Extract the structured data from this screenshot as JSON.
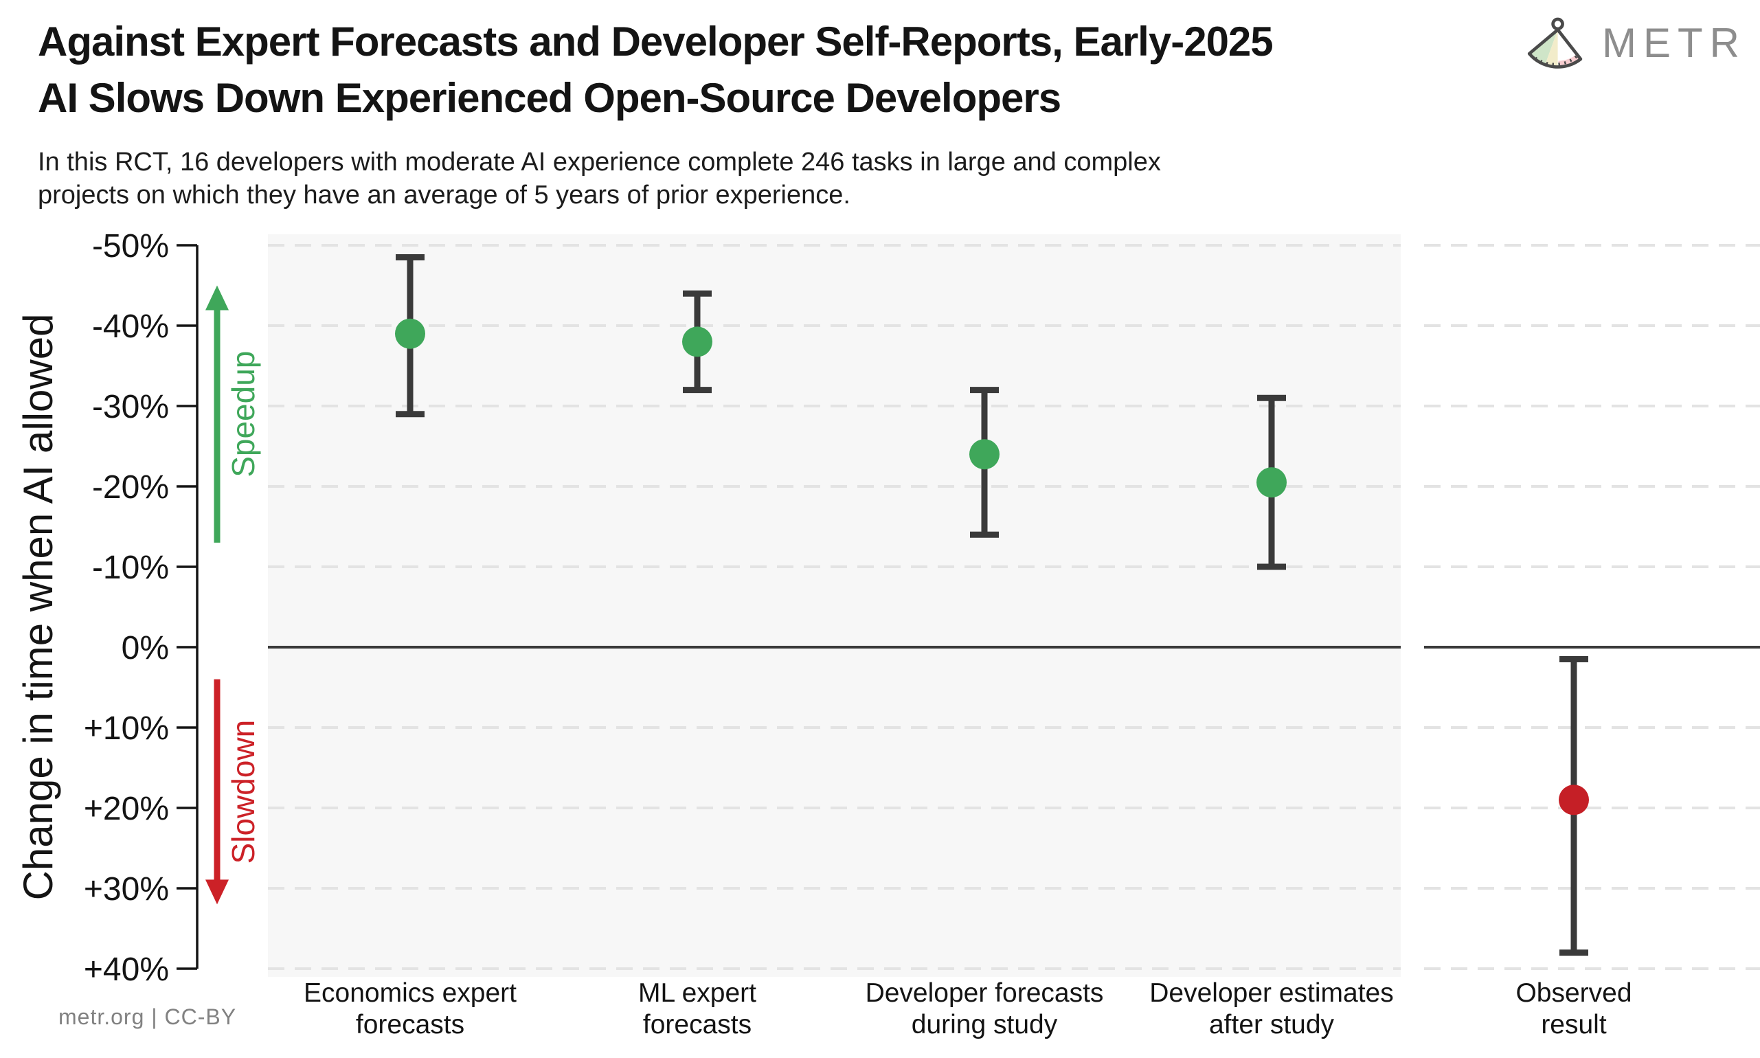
{
  "header": {
    "logo_text": "METR"
  },
  "footer": {
    "credit": "metr.org | CC-BY"
  },
  "chart_data": {
    "type": "scatter",
    "title": "Against Expert Forecasts and Developer Self-Reports, Early-2025 AI Slows Down Experienced Open-Source Developers",
    "title_lines": [
      "Against Expert Forecasts and Developer Self-Reports, Early-2025",
      "AI Slows Down Experienced Open-Source Developers"
    ],
    "subtitle_lines": [
      "In this RCT, 16 developers with moderate AI experience complete 246 tasks in large and complex",
      "projects on which they have an average of 5 years of prior experience."
    ],
    "ylabel": "Change in time when AI allowed",
    "ylim": [
      -50,
      40
    ],
    "yticks": [
      -50,
      -40,
      -30,
      -20,
      -10,
      0,
      10,
      20,
      30,
      40
    ],
    "ytick_labels": [
      "-50%",
      "-40%",
      "-30%",
      "-20%",
      "-10%",
      "0%",
      "+10%",
      "+20%",
      "+30%",
      "+40%"
    ],
    "grid": "dashed-horizontal",
    "zero_line": 0,
    "direction_annotations": [
      {
        "label": "Speedup",
        "direction": "up",
        "color": "#3fa75a",
        "value_range": [
          -45,
          -13
        ]
      },
      {
        "label": "Slowdown",
        "direction": "down",
        "color": "#cc2127",
        "value_range": [
          4,
          32
        ]
      }
    ],
    "series": [
      {
        "category": "Economics expert forecasts",
        "label_lines": [
          "Economics expert",
          "forecasts"
        ],
        "value": -39,
        "ci_low": -48.5,
        "ci_high": -29,
        "color": "#3fa75a",
        "panel": "main"
      },
      {
        "category": "ML expert forecasts",
        "label_lines": [
          "ML expert",
          "forecasts"
        ],
        "value": -38,
        "ci_low": -44,
        "ci_high": -32,
        "color": "#3fa75a",
        "panel": "main"
      },
      {
        "category": "Developer forecasts during study",
        "label_lines": [
          "Developer forecasts",
          "during study"
        ],
        "value": -24,
        "ci_low": -32,
        "ci_high": -14,
        "color": "#3fa75a",
        "panel": "main"
      },
      {
        "category": "Developer estimates after study",
        "label_lines": [
          "Developer estimates",
          "after study"
        ],
        "value": -20.5,
        "ci_low": -31,
        "ci_high": -10,
        "color": "#3fa75a",
        "panel": "main"
      },
      {
        "category": "Observed result",
        "label_lines": [
          "Observed",
          "result"
        ],
        "value": 19,
        "ci_low": 1.5,
        "ci_high": 38,
        "color": "#c51f26",
        "panel": "observed"
      }
    ],
    "colors": {
      "error_bar": "#3a3a3a",
      "zero_line": "#3a3a3a",
      "gridline": "#e3e3e3",
      "panel_bg": "#f7f7f7",
      "axis": "#141414",
      "text": "#141414"
    }
  }
}
